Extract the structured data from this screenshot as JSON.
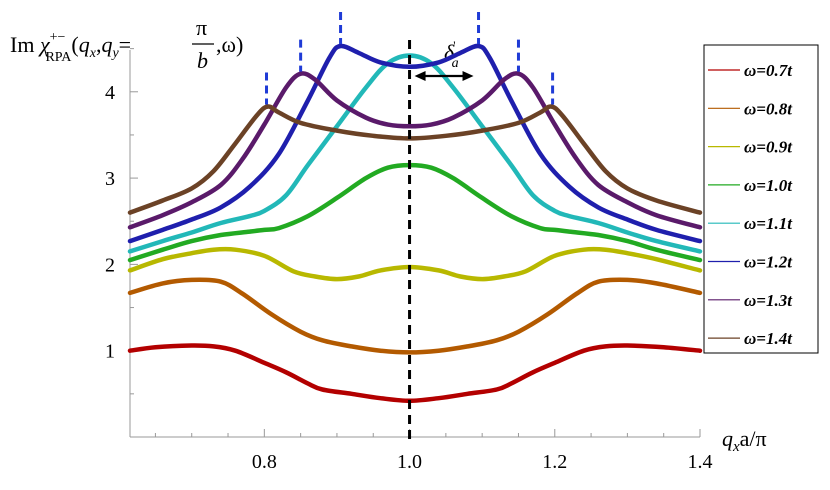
{
  "chart_data": {
    "type": "line",
    "ylabel": "Im χ+−RPA(qx,qy=π/b,ω)",
    "ylabel_parts": {
      "pre": "Im ",
      "chi": "χ",
      "sup": "+−",
      "sub": "RPA",
      "args_pre": "(",
      "qx": "q",
      "qx_sub": "x",
      "comma1": ",",
      "qy": "q",
      "qy_sub": "y",
      "eq": "=",
      "num": "π",
      "den": "b",
      "tail": ",ω)"
    },
    "xlabel": "qxa/π",
    "xlabel_parts": {
      "q": "q",
      "sub": "x",
      "rest": "a/π"
    },
    "annotation": {
      "text": "δ'a",
      "sym": "δ",
      "sup": "'",
      "sub": "a"
    },
    "xlim": [
      0.615,
      1.4
    ],
    "ylim": [
      0,
      4.6
    ],
    "xticks": [
      "0.8",
      "1.0",
      "1.2",
      "1.4"
    ],
    "yticks": [
      "1",
      "2",
      "3",
      "4"
    ],
    "dashed_vline_x": 1.0,
    "peak_markers_x": [
      0.803,
      0.85,
      0.905,
      1.095,
      1.15,
      1.197
    ],
    "delta_arrow": {
      "x1": 1.0,
      "x2": 1.095,
      "y": 4.35
    },
    "legend": [
      {
        "label": "ω=0.7t",
        "color": "#b30000"
      },
      {
        "label": "ω=0.8t",
        "color": "#b35a00"
      },
      {
        "label": "ω=0.9t",
        "color": "#b8b800"
      },
      {
        "label": "ω=1.0t",
        "color": "#22aa22"
      },
      {
        "label": "ω=1.1t",
        "color": "#22b8b8"
      },
      {
        "label": "ω=1.2t",
        "color": "#1f1fad"
      },
      {
        "label": "ω=1.3t",
        "color": "#5a1a6a"
      },
      {
        "label": "ω=1.4t",
        "color": "#6b4226"
      }
    ],
    "series": [
      {
        "name": "ω=0.7t",
        "color": "#b30000",
        "points": [
          [
            0.615,
            1.0
          ],
          [
            0.65,
            1.04
          ],
          [
            0.7,
            1.06
          ],
          [
            0.73,
            1.05
          ],
          [
            0.76,
            1.0
          ],
          [
            0.8,
            0.86
          ],
          [
            0.83,
            0.75
          ],
          [
            0.86,
            0.62
          ],
          [
            0.88,
            0.55
          ],
          [
            0.92,
            0.5
          ],
          [
            0.96,
            0.45
          ],
          [
            1.0,
            0.42
          ],
          [
            1.04,
            0.45
          ],
          [
            1.08,
            0.5
          ],
          [
            1.12,
            0.55
          ],
          [
            1.14,
            0.62
          ],
          [
            1.17,
            0.75
          ],
          [
            1.2,
            0.86
          ],
          [
            1.24,
            1.0
          ],
          [
            1.27,
            1.05
          ],
          [
            1.3,
            1.06
          ],
          [
            1.35,
            1.04
          ],
          [
            1.4,
            1.0
          ]
        ]
      },
      {
        "name": "ω=0.8t",
        "color": "#b35a00",
        "points": [
          [
            0.615,
            1.67
          ],
          [
            0.66,
            1.78
          ],
          [
            0.7,
            1.82
          ],
          [
            0.74,
            1.8
          ],
          [
            0.77,
            1.66
          ],
          [
            0.81,
            1.42
          ],
          [
            0.85,
            1.22
          ],
          [
            0.88,
            1.12
          ],
          [
            0.92,
            1.05
          ],
          [
            0.96,
            1.0
          ],
          [
            1.0,
            0.98
          ],
          [
            1.04,
            1.0
          ],
          [
            1.08,
            1.05
          ],
          [
            1.12,
            1.12
          ],
          [
            1.15,
            1.22
          ],
          [
            1.19,
            1.42
          ],
          [
            1.23,
            1.66
          ],
          [
            1.26,
            1.8
          ],
          [
            1.3,
            1.82
          ],
          [
            1.34,
            1.78
          ],
          [
            1.4,
            1.67
          ]
        ]
      },
      {
        "name": "ω=0.9t",
        "color": "#b8b800",
        "points": [
          [
            0.615,
            1.93
          ],
          [
            0.66,
            2.06
          ],
          [
            0.7,
            2.13
          ],
          [
            0.73,
            2.17
          ],
          [
            0.76,
            2.17
          ],
          [
            0.8,
            2.1
          ],
          [
            0.84,
            1.92
          ],
          [
            0.87,
            1.86
          ],
          [
            0.9,
            1.83
          ],
          [
            0.93,
            1.86
          ],
          [
            0.96,
            1.93
          ],
          [
            1.0,
            1.97
          ],
          [
            1.04,
            1.93
          ],
          [
            1.07,
            1.86
          ],
          [
            1.1,
            1.83
          ],
          [
            1.13,
            1.86
          ],
          [
            1.16,
            1.92
          ],
          [
            1.2,
            2.1
          ],
          [
            1.24,
            2.17
          ],
          [
            1.27,
            2.17
          ],
          [
            1.3,
            2.13
          ],
          [
            1.34,
            2.06
          ],
          [
            1.4,
            1.93
          ]
        ]
      },
      {
        "name": "ω=1.0t",
        "color": "#22aa22",
        "points": [
          [
            0.615,
            2.05
          ],
          [
            0.66,
            2.17
          ],
          [
            0.7,
            2.27
          ],
          [
            0.74,
            2.34
          ],
          [
            0.78,
            2.38
          ],
          [
            0.8,
            2.4
          ],
          [
            0.82,
            2.42
          ],
          [
            0.86,
            2.56
          ],
          [
            0.9,
            2.77
          ],
          [
            0.94,
            3.0
          ],
          [
            0.97,
            3.12
          ],
          [
            1.0,
            3.15
          ],
          [
            1.03,
            3.12
          ],
          [
            1.06,
            3.0
          ],
          [
            1.1,
            2.77
          ],
          [
            1.14,
            2.56
          ],
          [
            1.18,
            2.42
          ],
          [
            1.2,
            2.4
          ],
          [
            1.22,
            2.38
          ],
          [
            1.26,
            2.34
          ],
          [
            1.3,
            2.27
          ],
          [
            1.34,
            2.17
          ],
          [
            1.4,
            2.05
          ]
        ]
      },
      {
        "name": "ω=1.1t",
        "color": "#22b8b8",
        "points": [
          [
            0.615,
            2.15
          ],
          [
            0.66,
            2.27
          ],
          [
            0.7,
            2.37
          ],
          [
            0.74,
            2.48
          ],
          [
            0.78,
            2.56
          ],
          [
            0.8,
            2.62
          ],
          [
            0.83,
            2.8
          ],
          [
            0.86,
            3.15
          ],
          [
            0.9,
            3.6
          ],
          [
            0.94,
            4.05
          ],
          [
            0.97,
            4.33
          ],
          [
            1.0,
            4.42
          ],
          [
            1.03,
            4.33
          ],
          [
            1.06,
            4.05
          ],
          [
            1.1,
            3.6
          ],
          [
            1.14,
            3.15
          ],
          [
            1.17,
            2.8
          ],
          [
            1.2,
            2.62
          ],
          [
            1.22,
            2.56
          ],
          [
            1.26,
            2.48
          ],
          [
            1.3,
            2.37
          ],
          [
            1.34,
            2.27
          ],
          [
            1.4,
            2.15
          ]
        ]
      },
      {
        "name": "ω=1.2t",
        "color": "#1f1fad",
        "points": [
          [
            0.615,
            2.27
          ],
          [
            0.66,
            2.4
          ],
          [
            0.7,
            2.52
          ],
          [
            0.74,
            2.66
          ],
          [
            0.78,
            2.9
          ],
          [
            0.82,
            3.28
          ],
          [
            0.86,
            3.9
          ],
          [
            0.89,
            4.4
          ],
          [
            0.905,
            4.53
          ],
          [
            0.93,
            4.45
          ],
          [
            0.96,
            4.34
          ],
          [
            1.0,
            4.29
          ],
          [
            1.04,
            4.34
          ],
          [
            1.07,
            4.45
          ],
          [
            1.095,
            4.53
          ],
          [
            1.11,
            4.4
          ],
          [
            1.14,
            3.9
          ],
          [
            1.18,
            3.28
          ],
          [
            1.22,
            2.9
          ],
          [
            1.26,
            2.66
          ],
          [
            1.3,
            2.52
          ],
          [
            1.34,
            2.4
          ],
          [
            1.4,
            2.27
          ]
        ]
      },
      {
        "name": "ω=1.3t",
        "color": "#5a1a6a",
        "points": [
          [
            0.615,
            2.43
          ],
          [
            0.66,
            2.57
          ],
          [
            0.7,
            2.72
          ],
          [
            0.74,
            2.92
          ],
          [
            0.77,
            3.22
          ],
          [
            0.8,
            3.62
          ],
          [
            0.83,
            4.05
          ],
          [
            0.85,
            4.21
          ],
          [
            0.87,
            4.14
          ],
          [
            0.9,
            3.9
          ],
          [
            0.94,
            3.7
          ],
          [
            0.97,
            3.62
          ],
          [
            1.0,
            3.6
          ],
          [
            1.03,
            3.62
          ],
          [
            1.06,
            3.7
          ],
          [
            1.1,
            3.9
          ],
          [
            1.13,
            4.14
          ],
          [
            1.15,
            4.21
          ],
          [
            1.17,
            4.05
          ],
          [
            1.2,
            3.62
          ],
          [
            1.23,
            3.22
          ],
          [
            1.26,
            2.92
          ],
          [
            1.3,
            2.72
          ],
          [
            1.34,
            2.57
          ],
          [
            1.4,
            2.43
          ]
        ]
      },
      {
        "name": "ω=1.4t",
        "color": "#6b4226",
        "points": [
          [
            0.615,
            2.6
          ],
          [
            0.66,
            2.74
          ],
          [
            0.7,
            2.88
          ],
          [
            0.73,
            3.08
          ],
          [
            0.76,
            3.4
          ],
          [
            0.79,
            3.73
          ],
          [
            0.805,
            3.83
          ],
          [
            0.82,
            3.76
          ],
          [
            0.85,
            3.64
          ],
          [
            0.9,
            3.55
          ],
          [
            0.95,
            3.49
          ],
          [
            1.0,
            3.46
          ],
          [
            1.05,
            3.49
          ],
          [
            1.1,
            3.55
          ],
          [
            1.15,
            3.64
          ],
          [
            1.18,
            3.76
          ],
          [
            1.195,
            3.83
          ],
          [
            1.21,
            3.73
          ],
          [
            1.24,
            3.4
          ],
          [
            1.27,
            3.08
          ],
          [
            1.3,
            2.88
          ],
          [
            1.34,
            2.74
          ],
          [
            1.4,
            2.6
          ]
        ]
      }
    ]
  }
}
